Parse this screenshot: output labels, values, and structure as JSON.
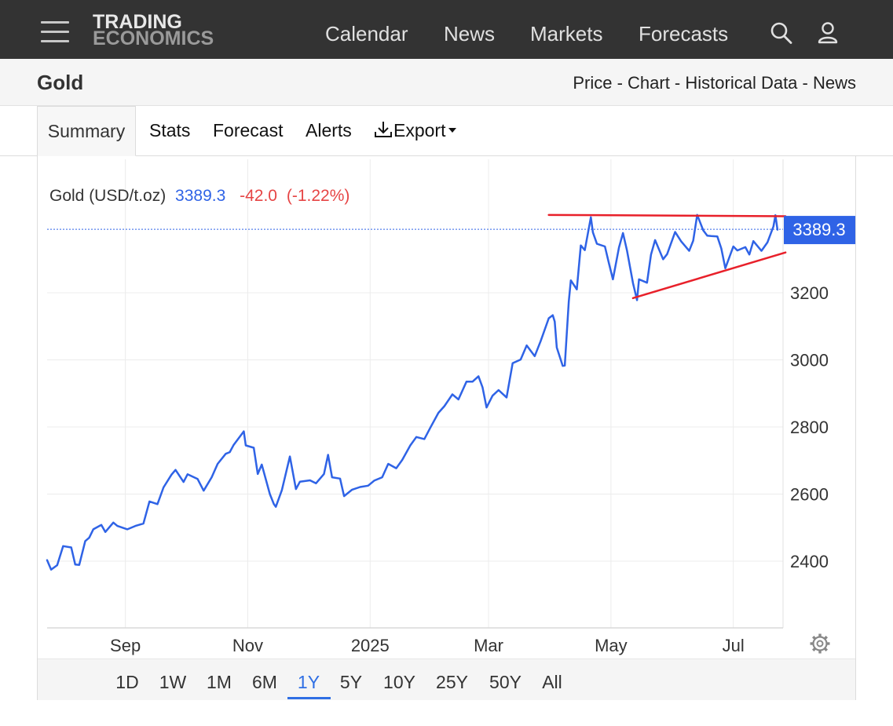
{
  "brand": {
    "line1": "TRADING",
    "line2": "ECONOMICS"
  },
  "nav": {
    "calendar": "Calendar",
    "news": "News",
    "markets": "Markets",
    "forecasts": "Forecasts"
  },
  "title": "Gold",
  "subnav": {
    "price": "Price",
    "chart": "Chart",
    "historical": "Historical Data",
    "news": "News",
    "sep": " - "
  },
  "tabs": {
    "summary": "Summary",
    "stats": "Stats",
    "forecast": "Forecast",
    "alerts": "Alerts",
    "export": "Export"
  },
  "ranges": [
    "1D",
    "1W",
    "1M",
    "6M",
    "1Y",
    "5Y",
    "10Y",
    "25Y",
    "50Y",
    "All"
  ],
  "active_range": "1Y",
  "colors": {
    "line": "#2f63e6",
    "trend": "#e8202a",
    "down": "#e64545",
    "accent": "#2f6fe4"
  },
  "chart_data": {
    "type": "line",
    "title": "Gold (USD/t.oz)",
    "last_value": "3389.3",
    "change": "-42.0",
    "change_pct": "(-1.22%)",
    "price_tag": "3389.3",
    "x_tick_labels": [
      "Sep",
      "Nov",
      "2025",
      "Mar",
      "May",
      "Jul"
    ],
    "y_tick_labels": [
      "2400",
      "2600",
      "2800",
      "3000",
      "3200"
    ],
    "y_ticks": [
      2400,
      2600,
      2800,
      3000,
      3200
    ],
    "ylim": [
      2200,
      3600
    ],
    "grid": true,
    "x_start": "2024-07-24",
    "x_end": "2025-07-25",
    "series": [
      {
        "points": [
          [
            "2024-07-24",
            2403
          ],
          [
            "2024-07-26",
            2375
          ],
          [
            "2024-07-29",
            2388
          ],
          [
            "2024-08-01",
            2445
          ],
          [
            "2024-08-05",
            2441
          ],
          [
            "2024-08-07",
            2390
          ],
          [
            "2024-08-09",
            2389
          ],
          [
            "2024-08-12",
            2460
          ],
          [
            "2024-08-14",
            2470
          ],
          [
            "2024-08-16",
            2495
          ],
          [
            "2024-08-20",
            2508
          ],
          [
            "2024-08-22",
            2487
          ],
          [
            "2024-08-26",
            2515
          ],
          [
            "2024-08-28",
            2505
          ],
          [
            "2024-09-02",
            2495
          ],
          [
            "2024-09-06",
            2505
          ],
          [
            "2024-09-10",
            2512
          ],
          [
            "2024-09-13",
            2578
          ],
          [
            "2024-09-17",
            2570
          ],
          [
            "2024-09-20",
            2620
          ],
          [
            "2024-09-24",
            2658
          ],
          [
            "2024-09-26",
            2672
          ],
          [
            "2024-09-30",
            2636
          ],
          [
            "2024-10-02",
            2659
          ],
          [
            "2024-10-07",
            2645
          ],
          [
            "2024-10-10",
            2610
          ],
          [
            "2024-10-14",
            2650
          ],
          [
            "2024-10-17",
            2690
          ],
          [
            "2024-10-21",
            2720
          ],
          [
            "2024-10-23",
            2725
          ],
          [
            "2024-10-25",
            2747
          ],
          [
            "2024-10-30",
            2787
          ],
          [
            "2024-10-31",
            2745
          ],
          [
            "2024-11-04",
            2738
          ],
          [
            "2024-11-06",
            2660
          ],
          [
            "2024-11-08",
            2688
          ],
          [
            "2024-11-12",
            2600
          ],
          [
            "2024-11-14",
            2570
          ],
          [
            "2024-11-15",
            2562
          ],
          [
            "2024-11-18",
            2612
          ],
          [
            "2024-11-22",
            2712
          ],
          [
            "2024-11-25",
            2615
          ],
          [
            "2024-11-27",
            2637
          ],
          [
            "2024-12-02",
            2641
          ],
          [
            "2024-12-05",
            2632
          ],
          [
            "2024-12-09",
            2660
          ],
          [
            "2024-12-11",
            2717
          ],
          [
            "2024-12-13",
            2650
          ],
          [
            "2024-12-17",
            2646
          ],
          [
            "2024-12-19",
            2594
          ],
          [
            "2024-12-23",
            2613
          ],
          [
            "2024-12-27",
            2621
          ],
          [
            "2024-12-31",
            2625
          ],
          [
            "2025-01-03",
            2640
          ],
          [
            "2025-01-07",
            2650
          ],
          [
            "2025-01-10",
            2690
          ],
          [
            "2025-01-14",
            2677
          ],
          [
            "2025-01-17",
            2702
          ],
          [
            "2025-01-21",
            2745
          ],
          [
            "2025-01-24",
            2770
          ],
          [
            "2025-01-28",
            2764
          ],
          [
            "2025-01-31",
            2798
          ],
          [
            "2025-02-04",
            2842
          ],
          [
            "2025-02-07",
            2862
          ],
          [
            "2025-02-11",
            2897
          ],
          [
            "2025-02-14",
            2882
          ],
          [
            "2025-02-18",
            2935
          ],
          [
            "2025-02-21",
            2935
          ],
          [
            "2025-02-24",
            2951
          ],
          [
            "2025-02-26",
            2918
          ],
          [
            "2025-02-28",
            2858
          ],
          [
            "2025-03-03",
            2893
          ],
          [
            "2025-03-06",
            2910
          ],
          [
            "2025-03-10",
            2888
          ],
          [
            "2025-03-13",
            2990
          ],
          [
            "2025-03-17",
            3001
          ],
          [
            "2025-03-20",
            3043
          ],
          [
            "2025-03-24",
            3011
          ],
          [
            "2025-03-27",
            3056
          ],
          [
            "2025-03-31",
            3124
          ],
          [
            "2025-04-02",
            3133
          ],
          [
            "2025-04-03",
            3114
          ],
          [
            "2025-04-04",
            3037
          ],
          [
            "2025-04-07",
            2982
          ],
          [
            "2025-04-08",
            2983
          ],
          [
            "2025-04-09",
            3081
          ],
          [
            "2025-04-10",
            3174
          ],
          [
            "2025-04-11",
            3237
          ],
          [
            "2025-04-14",
            3210
          ],
          [
            "2025-04-16",
            3341
          ],
          [
            "2025-04-18",
            3327
          ],
          [
            "2025-04-21",
            3425
          ],
          [
            "2025-04-22",
            3380
          ],
          [
            "2025-04-24",
            3346
          ],
          [
            "2025-04-28",
            3338
          ],
          [
            "2025-04-30",
            3288
          ],
          [
            "2025-05-02",
            3240
          ],
          [
            "2025-05-05",
            3335
          ],
          [
            "2025-05-07",
            3378
          ],
          [
            "2025-05-09",
            3326
          ],
          [
            "2025-05-12",
            3228
          ],
          [
            "2025-05-14",
            3178
          ],
          [
            "2025-05-15",
            3240
          ],
          [
            "2025-05-19",
            3230
          ],
          [
            "2025-05-21",
            3314
          ],
          [
            "2025-05-23",
            3357
          ],
          [
            "2025-05-27",
            3300
          ],
          [
            "2025-05-29",
            3315
          ],
          [
            "2025-06-02",
            3381
          ],
          [
            "2025-06-05",
            3353
          ],
          [
            "2025-06-09",
            3325
          ],
          [
            "2025-06-11",
            3355
          ],
          [
            "2025-06-13",
            3432
          ],
          [
            "2025-06-16",
            3386
          ],
          [
            "2025-06-18",
            3370
          ],
          [
            "2025-06-20",
            3369
          ],
          [
            "2025-06-23",
            3368
          ],
          [
            "2025-06-25",
            3332
          ],
          [
            "2025-06-27",
            3273
          ],
          [
            "2025-07-01",
            3338
          ],
          [
            "2025-07-03",
            3326
          ],
          [
            "2025-07-07",
            3336
          ],
          [
            "2025-07-09",
            3314
          ],
          [
            "2025-07-11",
            3354
          ],
          [
            "2025-07-15",
            3325
          ],
          [
            "2025-07-18",
            3350
          ],
          [
            "2025-07-21",
            3398
          ],
          [
            "2025-07-22",
            3431
          ],
          [
            "2025-07-23",
            3388
          ]
        ]
      }
    ],
    "trendlines": [
      {
        "from": [
          "2025-03-31",
          3432
        ],
        "to": [
          "2025-07-27",
          3428
        ]
      },
      {
        "from": [
          "2025-05-12",
          3184
        ],
        "to": [
          "2025-07-27",
          3320
        ]
      }
    ]
  }
}
